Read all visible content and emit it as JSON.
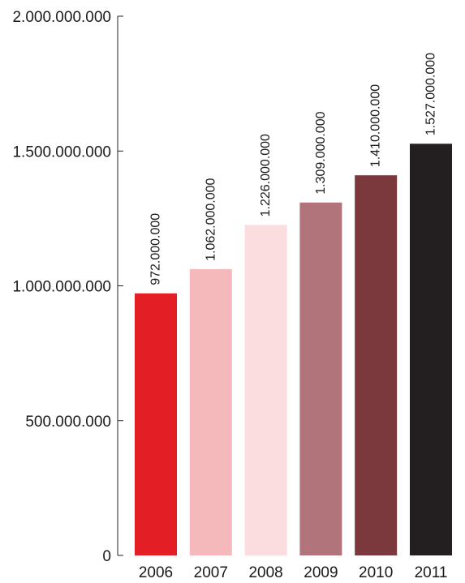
{
  "chart_data": {
    "type": "bar",
    "title": "",
    "xlabel": "",
    "ylabel": "",
    "categories": [
      "2006",
      "2007",
      "2008",
      "2009",
      "2010",
      "2011"
    ],
    "values": [
      972000000,
      1062000000,
      1226000000,
      1309000000,
      1410000000,
      1527000000
    ],
    "data_labels": [
      "972.000.000",
      "1.062.000.000",
      "1.226.000.000",
      "1.309.000.000",
      "1.410.000.000",
      "1.527.000.000"
    ],
    "bar_colors": [
      "#e31e24",
      "#f5b8bb",
      "#fbdcdf",
      "#b0747a",
      "#7b393d",
      "#231f20"
    ],
    "ylim": [
      0,
      2000000000
    ],
    "yticks": [
      0,
      500000000,
      1000000000,
      1500000000,
      2000000000
    ],
    "ytick_labels": [
      "0",
      "500.000.000",
      "1.000.000.000",
      "1.500.000.000",
      "2.000.000.000"
    ],
    "grid": false,
    "legend": "none"
  }
}
